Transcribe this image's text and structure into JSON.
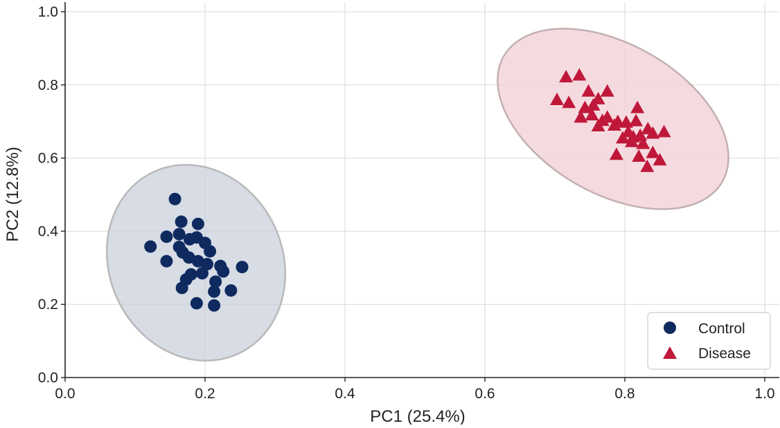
{
  "chart_data": {
    "type": "scatter",
    "xlabel": "PC1 (25.4%)",
    "ylabel": "PC2 (12.8%)",
    "xlim": [
      0.0,
      1.02
    ],
    "ylim": [
      0.0,
      1.02
    ],
    "xticks": [
      "0.0",
      "0.2",
      "0.4",
      "0.6",
      "0.8",
      "1.0"
    ],
    "yticks": [
      "0.0",
      "0.2",
      "0.4",
      "0.6",
      "0.8",
      "1.0"
    ],
    "grid": true,
    "legend_position": "bottom-right",
    "series": [
      {
        "name": "Control",
        "marker": "circle",
        "color": "#0f2a5f",
        "ellipse_fill": "#c9d0dc",
        "points": [
          [
            0.157,
            0.488
          ],
          [
            0.166,
            0.426
          ],
          [
            0.19,
            0.42
          ],
          [
            0.145,
            0.385
          ],
          [
            0.163,
            0.392
          ],
          [
            0.178,
            0.378
          ],
          [
            0.188,
            0.383
          ],
          [
            0.122,
            0.358
          ],
          [
            0.163,
            0.357
          ],
          [
            0.168,
            0.342
          ],
          [
            0.2,
            0.368
          ],
          [
            0.207,
            0.345
          ],
          [
            0.145,
            0.318
          ],
          [
            0.177,
            0.328
          ],
          [
            0.19,
            0.318
          ],
          [
            0.203,
            0.31
          ],
          [
            0.222,
            0.305
          ],
          [
            0.226,
            0.29
          ],
          [
            0.253,
            0.302
          ],
          [
            0.18,
            0.282
          ],
          [
            0.196,
            0.285
          ],
          [
            0.173,
            0.268
          ],
          [
            0.215,
            0.262
          ],
          [
            0.167,
            0.245
          ],
          [
            0.237,
            0.238
          ],
          [
            0.213,
            0.235
          ],
          [
            0.188,
            0.203
          ],
          [
            0.213,
            0.197
          ]
        ]
      },
      {
        "name": "Disease",
        "marker": "triangle",
        "color": "#c0183a",
        "ellipse_fill": "#f3d2d8",
        "points": [
          [
            0.716,
            0.822
          ],
          [
            0.735,
            0.827
          ],
          [
            0.748,
            0.783
          ],
          [
            0.775,
            0.783
          ],
          [
            0.703,
            0.76
          ],
          [
            0.72,
            0.752
          ],
          [
            0.743,
            0.738
          ],
          [
            0.762,
            0.762
          ],
          [
            0.755,
            0.745
          ],
          [
            0.737,
            0.712
          ],
          [
            0.753,
            0.718
          ],
          [
            0.768,
            0.703
          ],
          [
            0.775,
            0.712
          ],
          [
            0.79,
            0.7
          ],
          [
            0.802,
            0.698
          ],
          [
            0.762,
            0.688
          ],
          [
            0.785,
            0.69
          ],
          [
            0.818,
            0.738
          ],
          [
            0.816,
            0.702
          ],
          [
            0.833,
            0.68
          ],
          [
            0.856,
            0.672
          ],
          [
            0.797,
            0.655
          ],
          [
            0.81,
            0.645
          ],
          [
            0.822,
            0.662
          ],
          [
            0.84,
            0.668
          ],
          [
            0.826,
            0.64
          ],
          [
            0.788,
            0.61
          ],
          [
            0.82,
            0.605
          ],
          [
            0.85,
            0.595
          ],
          [
            0.84,
            0.615
          ],
          [
            0.832,
            0.577
          ],
          [
            0.812,
            0.658
          ],
          [
            0.805,
            0.672
          ]
        ]
      }
    ]
  }
}
